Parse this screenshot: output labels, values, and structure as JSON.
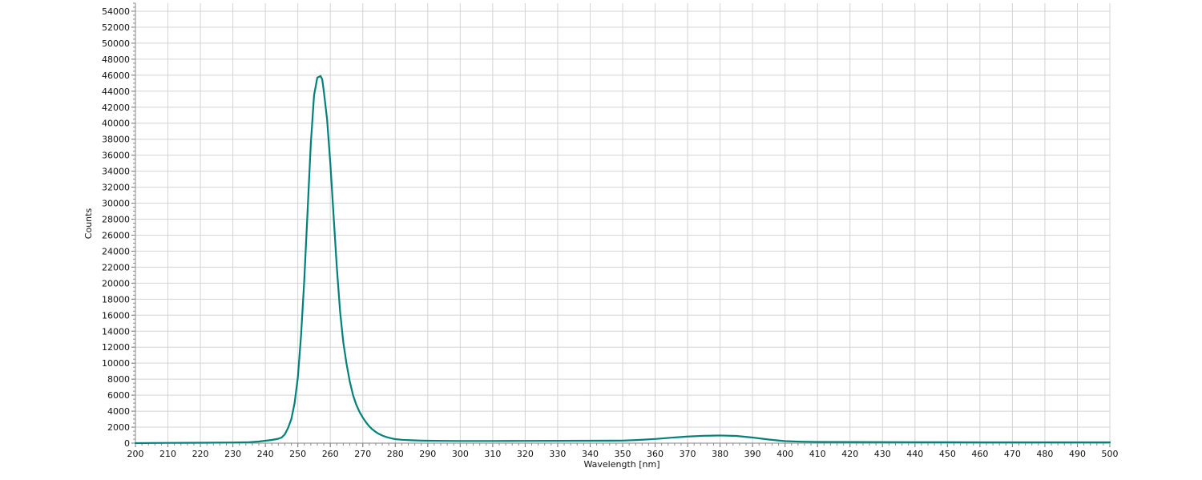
{
  "chart_data": {
    "type": "line",
    "title": "",
    "xlabel": "Wavelength [nm]",
    "ylabel": "Counts",
    "xlim": [
      200,
      500
    ],
    "ylim": [
      0,
      55000
    ],
    "x_major_step": 10,
    "y_major_step": 2000,
    "x_ticks": [
      200,
      210,
      220,
      230,
      240,
      250,
      260,
      270,
      280,
      290,
      300,
      310,
      320,
      330,
      340,
      350,
      360,
      370,
      380,
      390,
      400,
      410,
      420,
      430,
      440,
      450,
      460,
      470,
      480,
      490,
      500
    ],
    "y_ticks": [
      0,
      2000,
      4000,
      6000,
      8000,
      10000,
      12000,
      14000,
      16000,
      18000,
      20000,
      22000,
      24000,
      26000,
      28000,
      30000,
      32000,
      34000,
      36000,
      38000,
      40000,
      42000,
      44000,
      46000,
      48000,
      50000,
      52000,
      54000
    ],
    "grid": true,
    "legend": "none",
    "line_color": "#00827a",
    "series": [
      {
        "x": [
          200,
          205,
          210,
          215,
          220,
          225,
          230,
          235,
          238,
          240,
          242,
          244,
          245,
          246,
          247,
          248,
          249,
          250,
          251,
          252,
          253,
          254,
          255,
          256,
          257,
          257.5,
          258,
          259,
          260,
          261,
          262,
          263,
          264,
          265,
          266,
          267,
          268,
          269,
          270,
          271,
          272,
          273,
          274,
          275,
          276,
          277,
          278,
          279,
          280,
          282,
          285,
          288,
          290,
          295,
          300,
          310,
          320,
          330,
          340,
          350,
          355,
          360,
          365,
          370,
          375,
          380,
          385,
          390,
          395,
          400,
          405,
          410,
          420,
          430,
          440,
          450,
          460,
          470,
          480,
          490,
          500
        ],
        "y": [
          0,
          20,
          30,
          40,
          50,
          60,
          80,
          120,
          200,
          300,
          400,
          550,
          700,
          1100,
          1900,
          3000,
          5000,
          8200,
          13500,
          20500,
          29000,
          37500,
          43500,
          45700,
          45900,
          45500,
          44000,
          40500,
          35000,
          28500,
          22000,
          16500,
          12600,
          9900,
          7700,
          6000,
          4800,
          3900,
          3200,
          2600,
          2100,
          1700,
          1400,
          1150,
          950,
          800,
          680,
          580,
          500,
          420,
          360,
          320,
          300,
          280,
          270,
          270,
          280,
          290,
          300,
          320,
          400,
          520,
          680,
          830,
          920,
          960,
          900,
          700,
          450,
          250,
          180,
          150,
          140,
          130,
          120,
          110,
          100,
          100,
          100,
          100,
          100
        ]
      }
    ]
  }
}
